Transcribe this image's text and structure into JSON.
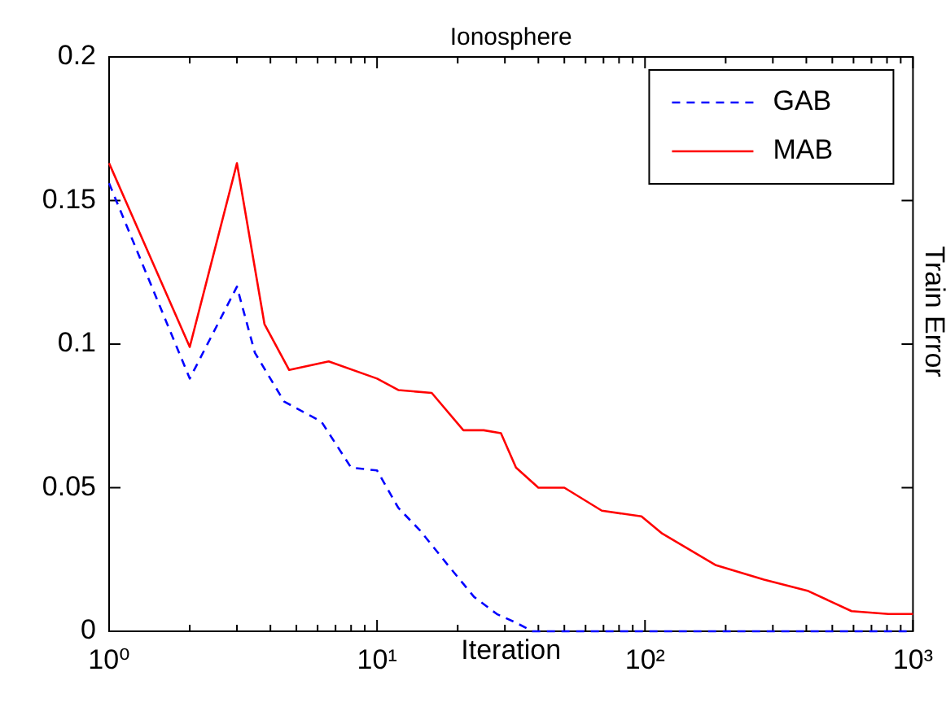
{
  "chart_data": {
    "type": "line",
    "title": "Ionosphere",
    "xlabel": "Iteration",
    "y2label": "Train Error",
    "xlim": [
      1,
      1000
    ],
    "ylim": [
      0,
      0.2
    ],
    "xticks": [
      {
        "value": 1,
        "label": "10⁰"
      },
      {
        "value": 2,
        "label": null
      },
      {
        "value": 3,
        "label": null
      },
      {
        "value": 4,
        "label": null
      },
      {
        "value": 5,
        "label": null
      },
      {
        "value": 6,
        "label": null
      },
      {
        "value": 7,
        "label": null
      },
      {
        "value": 8,
        "label": null
      },
      {
        "value": 9,
        "label": null
      },
      {
        "value": 10,
        "label": "10¹"
      },
      {
        "value": 20,
        "label": null
      },
      {
        "value": 30,
        "label": null
      },
      {
        "value": 40,
        "label": null
      },
      {
        "value": 50,
        "label": null
      },
      {
        "value": 60,
        "label": null
      },
      {
        "value": 70,
        "label": null
      },
      {
        "value": 80,
        "label": null
      },
      {
        "value": 90,
        "label": null
      },
      {
        "value": 100,
        "label": "10²"
      },
      {
        "value": 200,
        "label": null
      },
      {
        "value": 300,
        "label": null
      },
      {
        "value": 400,
        "label": null
      },
      {
        "value": 500,
        "label": null
      },
      {
        "value": 600,
        "label": null
      },
      {
        "value": 700,
        "label": null
      },
      {
        "value": 800,
        "label": null
      },
      {
        "value": 900,
        "label": null
      },
      {
        "value": 1000,
        "label": "10³"
      }
    ],
    "yticks": [
      0,
      0.05,
      0.1,
      0.15,
      0.2
    ],
    "log": "x",
    "grid": false,
    "legend": "top right",
    "marker": "none",
    "series": [
      {
        "name": "GAB",
        "color": "#0000ff",
        "line_style": "dashed",
        "x": [
          1,
          2,
          3,
          3.5,
          4.5,
          6.2,
          8,
          10,
          12,
          14.5,
          18.4,
          23,
          28,
          33,
          38,
          1000
        ],
        "values": [
          0.156,
          0.088,
          0.12,
          0.097,
          0.08,
          0.073,
          0.057,
          0.056,
          0.043,
          0.035,
          0.023,
          0.012,
          0.006,
          0.003,
          0,
          0
        ]
      },
      {
        "name": "MAB",
        "color": "#ff0000",
        "line_style": "solid",
        "x": [
          1,
          2,
          3,
          3.8,
          4.7,
          6.6,
          10,
          12,
          16,
          21,
          25,
          29,
          33,
          40,
          50,
          69,
          97,
          116,
          184,
          278,
          407,
          590,
          810,
          1000
        ],
        "values": [
          0.163,
          0.099,
          0.163,
          0.107,
          0.091,
          0.094,
          0.088,
          0.084,
          0.083,
          0.07,
          0.07,
          0.069,
          0.057,
          0.05,
          0.05,
          0.042,
          0.04,
          0.034,
          0.023,
          0.018,
          0.014,
          0.007,
          0.006,
          0.006
        ]
      }
    ]
  }
}
